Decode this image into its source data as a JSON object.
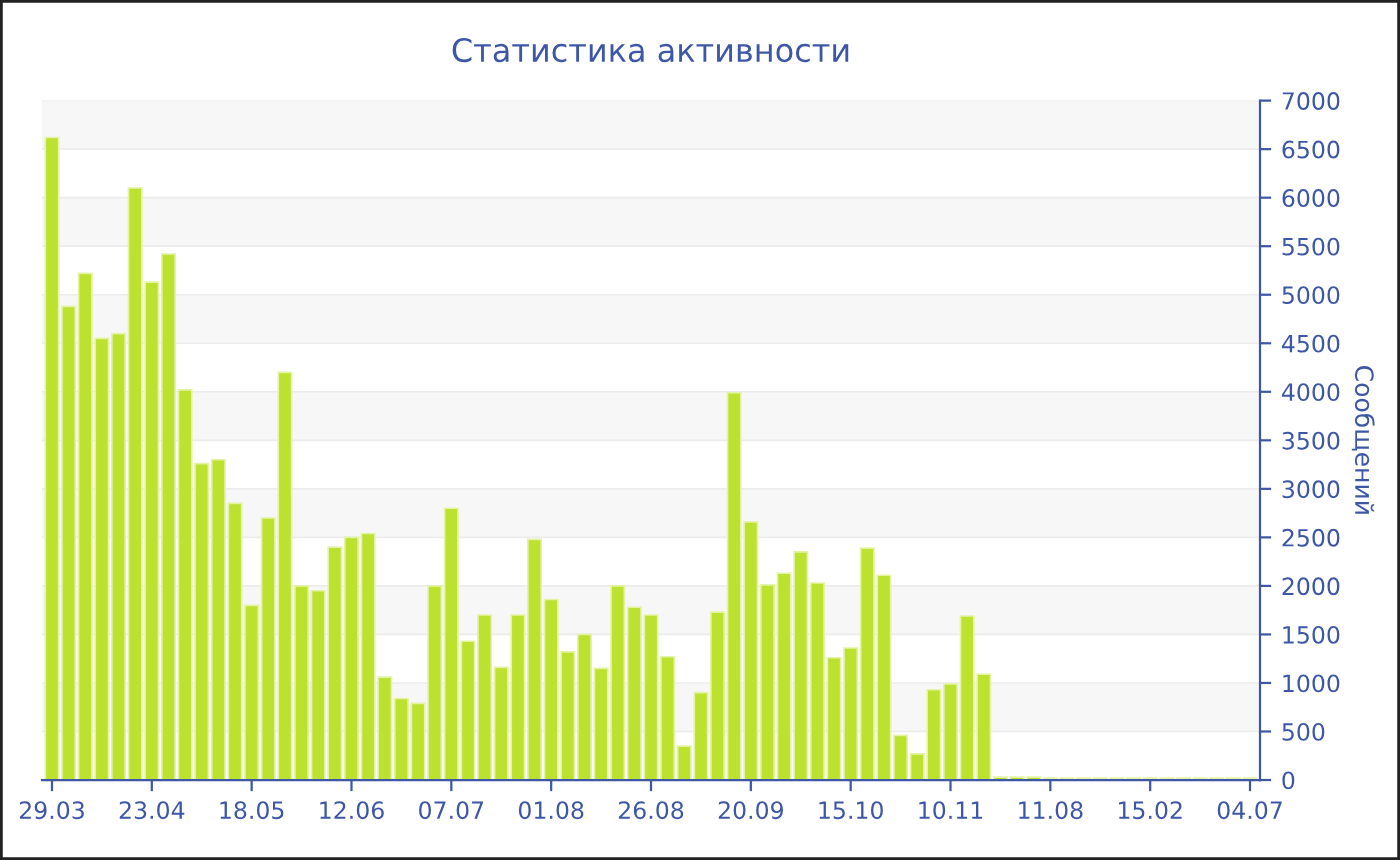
{
  "chart_data": {
    "type": "bar",
    "title": "Статистика активности",
    "ylabel": "Сообщений",
    "categories": [
      "29.03",
      null,
      null,
      null,
      null,
      null,
      "23.04",
      null,
      null,
      null,
      null,
      null,
      "18.05",
      null,
      null,
      null,
      null,
      null,
      "12.06",
      null,
      null,
      null,
      null,
      null,
      "07.07",
      null,
      null,
      null,
      null,
      null,
      "01.08",
      null,
      null,
      null,
      null,
      null,
      "26.08",
      null,
      null,
      null,
      null,
      null,
      "20.09",
      null,
      null,
      null,
      null,
      null,
      "15.10",
      null,
      null,
      null,
      null,
      null,
      "10.11",
      null,
      null,
      null,
      null,
      null,
      "11.08",
      null,
      null,
      null,
      null,
      null,
      "15.02",
      null,
      null,
      null,
      null,
      null,
      "04.07"
    ],
    "values": [
      6620,
      4880,
      5220,
      4550,
      4600,
      6100,
      5130,
      5420,
      4020,
      3260,
      3300,
      2850,
      1800,
      2700,
      4200,
      2000,
      1950,
      2400,
      2500,
      2540,
      1060,
      840,
      790,
      2000,
      2800,
      1430,
      1700,
      1160,
      1700,
      2480,
      1860,
      1320,
      1500,
      1150,
      2000,
      1780,
      1700,
      1270,
      350,
      900,
      1730,
      3990,
      2660,
      2010,
      2130,
      2350,
      2030,
      1260,
      1360,
      2390,
      2110,
      460,
      270,
      930,
      990,
      1690,
      1090,
      30,
      30,
      30,
      20,
      20,
      20,
      20,
      20,
      20,
      20,
      20,
      20,
      20,
      20,
      20,
      20
    ],
    "color": "#bce12f",
    "ylim": [
      0,
      7000
    ],
    "yticks": [
      0,
      500,
      1000,
      1500,
      2000,
      2500,
      3000,
      3500,
      4000,
      4500,
      5000,
      5500,
      6000,
      6500,
      7000
    ],
    "grid": "y",
    "legend": false
  }
}
